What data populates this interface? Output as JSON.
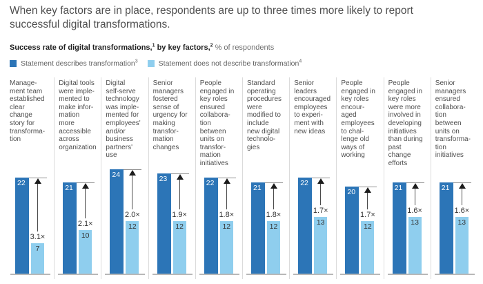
{
  "title": "When key factors are in place, respondents are up to three times more likely to report successful digital transformations.",
  "subtitle": {
    "part1_bold": "Success rate of digital transformations,",
    "sup1": "1",
    "part2_bold": " by key factors,",
    "sup2": "2",
    "part3": " % of respondents"
  },
  "legend": [
    {
      "label": "Statement describes transformation",
      "sup": "3",
      "color": "#2c75b7"
    },
    {
      "label": "Statement does not describe transformation",
      "sup": "4",
      "color": "#8fceee"
    }
  ],
  "colors": {
    "dark_bar": "#2c75b7",
    "light_bar": "#8fceee",
    "divider": "#dbdbdb",
    "baseline": "#b8b8b8"
  },
  "chart_data": {
    "type": "bar",
    "title": "Success rate of digital transformations, by key factors",
    "ylabel": "% of respondents",
    "legend_position": "top",
    "grid": false,
    "ylim": [
      0,
      24
    ],
    "categories": [
      "Manage-\nment team\nestablished\nclear\nchange\nstory for\ntransforma-\ntion",
      "Digital tools\nwere imple-\nmented to\nmake infor-\nmation\nmore\naccessible\nacross\norganization",
      "Digital\nself-serve\ntechnology\nwas imple-\nmented for\nemployees'\nand/or\nbusiness\npartners'\nuse",
      "Senior\nmanagers\nfostered\nsense of\nurgency for\nmaking\ntransfor-\nmation\nchanges",
      "People\nengaged in\nkey roles\nensured\ncollabora-\ntion\nbetween\nunits on\ntransfor-\nmation\ninitiatives",
      "Standard\noperating\nprocedures\nwere\nmodified to\ninclude\nnew digital\ntechnolo-\ngies",
      "Senior\nleaders\nencouraged\nemployees\nto experi-\nment with\nnew ideas",
      "People\nengaged in\nkey roles\nencour-\naged\nemployees\nto chal-\nlenge old\nways of\nworking",
      "People\nengaged in\nkey roles\nwere more\ninvolved in\ndeveloping\ninitiatives\nthan during\npast\nchange\nefforts",
      "Senior\nmanagers\nensured\ncollabora-\ntion\nbetween\nunits on\ntransforma-\ntion\ninitiatives"
    ],
    "series": [
      {
        "name": "Statement describes transformation",
        "color": "#2c75b7",
        "values": [
          22,
          21,
          24,
          23,
          22,
          21,
          22,
          20,
          21,
          21
        ]
      },
      {
        "name": "Statement does not describe transformation",
        "color": "#8fceee",
        "values": [
          7,
          10,
          12,
          12,
          12,
          12,
          13,
          12,
          13,
          13
        ]
      }
    ],
    "multipliers": [
      "3.1×",
      "2.1×",
      "2.0×",
      "1.9×",
      "1.8×",
      "1.8×",
      "1.7×",
      "1.7×",
      "1.6×",
      "1.6×"
    ]
  }
}
